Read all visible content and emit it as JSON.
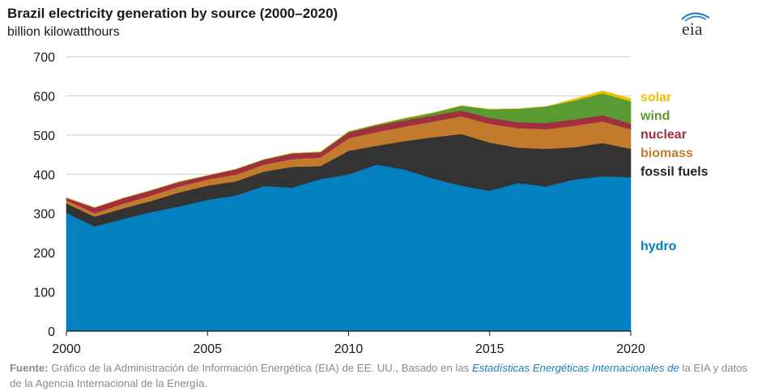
{
  "header": {
    "title": "Brazil electricity generation by source (2000–2020)",
    "subtitle": "billion kilowatthours",
    "logo_text": "eia"
  },
  "source": {
    "label": "Fuente:",
    "text1": " Gráfico de la Administración de Información Energética (EIA) de EE. UU., Basado en las ",
    "link1": "Estadísticas Energéticas Internacionales de",
    "text2": " la EIA y datos de la Agencia Internacional de la Energía."
  },
  "colors": {
    "hydro": "#0380c0",
    "fossil": "#333333",
    "biomass": "#c27a2c",
    "nuclear": "#a03040",
    "wind": "#5a9a32",
    "solar": "#f0c000",
    "axis": "#1a1a1a",
    "grid": "#cccccc"
  },
  "chart_data": {
    "type": "area",
    "stacked": true,
    "title": "Brazil electricity generation by source (2000–2020)",
    "ylabel": "billion kilowatthours",
    "xlim": [
      2000,
      2020
    ],
    "ylim": [
      0,
      700
    ],
    "yticks": [
      0,
      100,
      200,
      300,
      400,
      500,
      600,
      700
    ],
    "xticks": [
      2000,
      2005,
      2010,
      2015,
      2020
    ],
    "grid": true,
    "legend": "right, inline labels",
    "x": [
      2000,
      2001,
      2002,
      2003,
      2004,
      2005,
      2006,
      2007,
      2008,
      2009,
      2010,
      2011,
      2012,
      2013,
      2014,
      2015,
      2016,
      2017,
      2018,
      2019,
      2020
    ],
    "series": [
      {
        "name": "hydro",
        "values": [
          302,
          267,
          286,
          304,
          318,
          335,
          346,
          370,
          366,
          388,
          400,
          425,
          412,
          389,
          371,
          358,
          378,
          369,
          387,
          395,
          393
        ]
      },
      {
        "name": "fossil fuels",
        "values": [
          24,
          25,
          27,
          28,
          36,
          36,
          36,
          37,
          53,
          33,
          60,
          48,
          73,
          106,
          132,
          123,
          90,
          96,
          82,
          85,
          72
        ]
      },
      {
        "name": "biomass",
        "values": [
          8,
          9,
          12,
          14,
          15,
          16,
          17,
          18,
          20,
          22,
          32,
          35,
          37,
          40,
          45,
          48,
          50,
          50,
          55,
          55,
          50
        ]
      },
      {
        "name": "nuclear",
        "values": [
          6,
          14,
          14,
          13,
          12,
          10,
          14,
          12,
          14,
          13,
          15,
          16,
          16,
          15,
          15,
          15,
          15,
          16,
          16,
          16,
          14
        ]
      },
      {
        "name": "wind",
        "values": [
          0,
          0,
          0,
          0,
          0,
          0,
          0,
          1,
          1,
          1,
          2,
          3,
          5,
          7,
          12,
          22,
          34,
          42,
          48,
          56,
          57
        ]
      },
      {
        "name": "solar",
        "values": [
          0,
          0,
          0,
          0,
          0,
          0,
          0,
          0,
          0,
          0,
          0,
          0,
          0,
          0,
          0,
          0,
          0,
          0,
          4,
          6,
          7
        ]
      }
    ]
  }
}
